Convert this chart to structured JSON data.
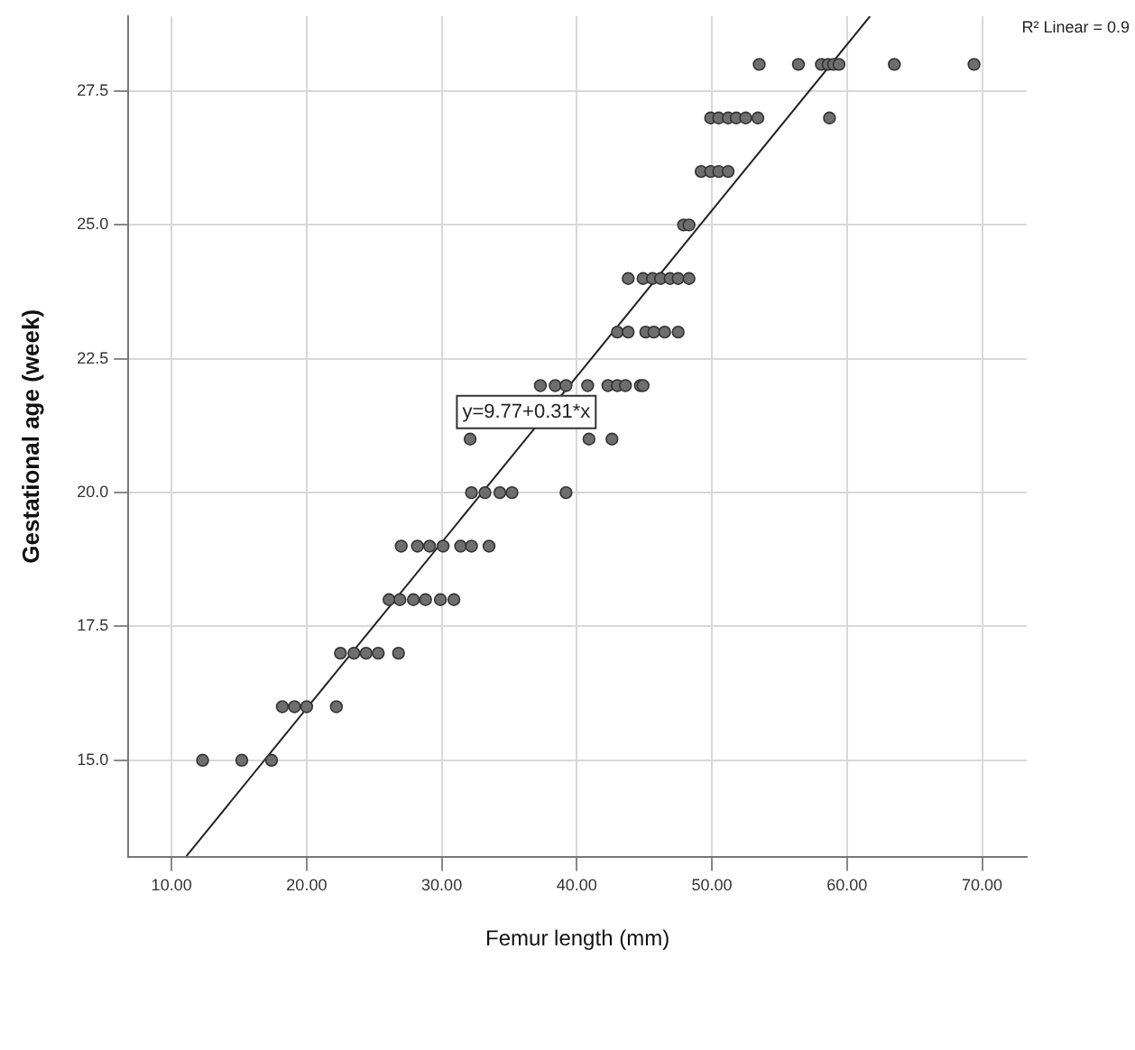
{
  "chart_data": {
    "type": "scatter",
    "xlabel": "Femur length (mm)",
    "ylabel": "Gestational age (week)",
    "xlim": [
      6.8,
      73.3
    ],
    "ylim": [
      13.2,
      28.9
    ],
    "xticks": [
      {
        "value": 10,
        "label": "10.00"
      },
      {
        "value": 20,
        "label": "20.00"
      },
      {
        "value": 30,
        "label": "30.00"
      },
      {
        "value": 40,
        "label": "40.00"
      },
      {
        "value": 50,
        "label": "50.00"
      },
      {
        "value": 60,
        "label": "60.00"
      },
      {
        "value": 70,
        "label": "70.00"
      }
    ],
    "yticks": [
      {
        "value": 15,
        "label": "15.0"
      },
      {
        "value": 17.5,
        "label": "17.5"
      },
      {
        "value": 20,
        "label": "20.0"
      },
      {
        "value": 22.5,
        "label": "22.5"
      },
      {
        "value": 25,
        "label": "25.0"
      },
      {
        "value": 27.5,
        "label": "27.5"
      }
    ],
    "grid": true,
    "legend": false,
    "marker": "circle",
    "series": [
      {
        "type": "scatter",
        "color": "#6e6e6e",
        "x": [
          12.3,
          15.2,
          17.4,
          18.2,
          19.1,
          20.0,
          22.2,
          22.5,
          23.5,
          24.4,
          25.3,
          26.8,
          26.1,
          26.9,
          27.9,
          28.8,
          29.9,
          30.9,
          27.0,
          28.2,
          29.1,
          30.1,
          31.4,
          32.2,
          33.5,
          32.2,
          33.2,
          34.3,
          35.2,
          39.2,
          32.1,
          40.9,
          42.6,
          37.3,
          38.4,
          39.2,
          40.8,
          42.3,
          43.0,
          43.6,
          44.7,
          44.9,
          43.0,
          43.8,
          45.1,
          45.7,
          46.5,
          47.5,
          43.8,
          44.9,
          45.6,
          46.2,
          46.9,
          47.5,
          48.3,
          47.9,
          48.3,
          49.2,
          49.9,
          50.5,
          51.2,
          49.9,
          50.5,
          51.2,
          51.8,
          52.5,
          53.4,
          58.7,
          53.5,
          56.4,
          58.1,
          58.6,
          59.0,
          59.4,
          63.5,
          69.4
        ],
        "values": [
          15,
          15,
          15,
          16,
          16,
          16,
          16,
          17,
          17,
          17,
          17,
          17,
          18,
          18,
          18,
          18,
          18,
          18,
          19,
          19,
          19,
          19,
          19,
          19,
          19,
          20,
          20,
          20,
          20,
          20,
          21,
          21,
          21,
          22,
          22,
          22,
          22,
          22,
          22,
          22,
          22,
          22,
          23,
          23,
          23,
          23,
          23,
          23,
          24,
          24,
          24,
          24,
          24,
          24,
          24,
          25,
          25,
          26,
          26,
          26,
          26,
          27,
          27,
          27,
          27,
          27,
          27,
          27,
          28,
          28,
          28,
          28,
          28,
          28,
          28,
          28
        ]
      },
      {
        "type": "line",
        "color": "#222222",
        "marker": "none",
        "x": [
          11.1,
          61.7
        ],
        "values": [
          13.21,
          28.9
        ]
      }
    ],
    "annotations": [
      "y=9.77+0.31*x",
      "R² Linear = 0.9"
    ]
  }
}
